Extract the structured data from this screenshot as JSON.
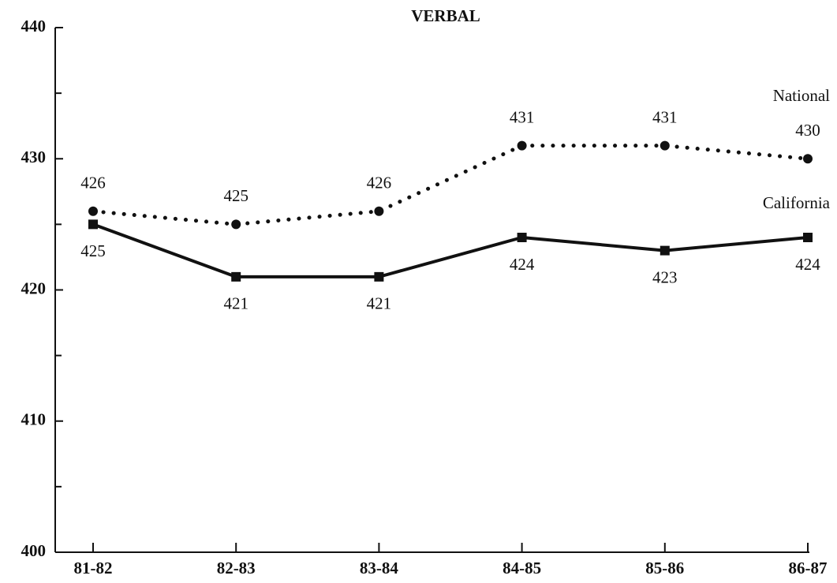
{
  "chart_data": {
    "type": "line",
    "title": "VERBAL",
    "categories": [
      "81-82",
      "82-83",
      "83-84",
      "84-85",
      "85-86",
      "86-87"
    ],
    "series": [
      {
        "name": "National",
        "color": "#111111",
        "style": "dotted",
        "marker": "circle",
        "values": [
          426,
          425,
          426,
          431,
          431,
          430
        ]
      },
      {
        "name": "California",
        "color": "#111111",
        "style": "solid",
        "marker": "square",
        "values": [
          425,
          421,
          421,
          424,
          423,
          424
        ]
      }
    ],
    "ylim": [
      400,
      440
    ],
    "yticks": [
      400,
      410,
      420,
      430,
      440
    ],
    "yminorticks": [
      405,
      415,
      425,
      435
    ],
    "grid": false
  }
}
